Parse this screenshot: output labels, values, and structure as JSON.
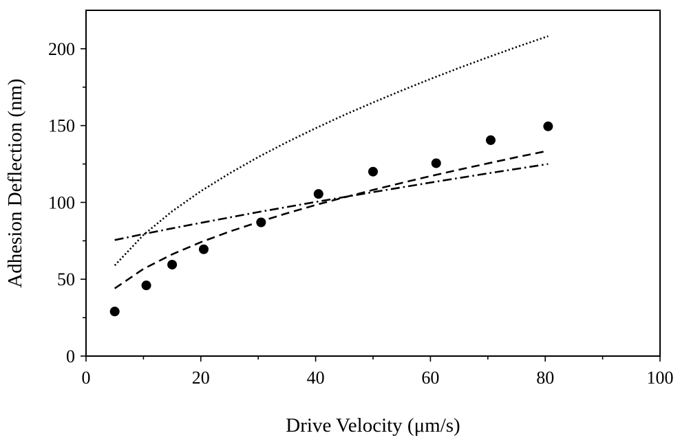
{
  "chart_data": {
    "type": "scatter",
    "title": "",
    "xlabel": "Drive Velocity (μm/s)",
    "ylabel": "Adhesion Deflection (nm)",
    "xlim": [
      0,
      100
    ],
    "ylim": [
      0,
      225
    ],
    "x_ticks": [
      0,
      20,
      40,
      60,
      80,
      100
    ],
    "x_minor_ticks": [
      10,
      30,
      50,
      70,
      90
    ],
    "y_ticks": [
      0,
      50,
      100,
      150,
      200
    ],
    "y_minor_ticks": [
      25,
      75,
      125,
      175
    ],
    "grid": false,
    "legend": "none",
    "series": [
      {
        "name": "measured",
        "style": "markers",
        "x": [
          5,
          10.5,
          15,
          20.5,
          30.5,
          40.5,
          50,
          61,
          70.5,
          80.5
        ],
        "y": [
          29,
          46,
          59.5,
          69.5,
          87,
          105.5,
          120,
          125.5,
          140.5,
          149.5
        ]
      },
      {
        "name": "dashed fit",
        "style": "dashed",
        "x": [
          5,
          10,
          15,
          20,
          25,
          30,
          35,
          40,
          45,
          50,
          55,
          60,
          65,
          70,
          75,
          80.5
        ],
        "y": [
          44,
          56.7,
          66.2,
          74.1,
          81.0,
          87.2,
          92.9,
          98.3,
          103.3,
          108.1,
          112.7,
          117.1,
          121.3,
          125.4,
          129.4,
          133.6
        ]
      },
      {
        "name": "dotted fit",
        "style": "dotted",
        "x": [
          5,
          10,
          15,
          20,
          25,
          30,
          35,
          40,
          45,
          50,
          55,
          60,
          65,
          70,
          75,
          80.5
        ],
        "y": [
          59,
          78.8,
          94.2,
          107.3,
          118.9,
          129.5,
          139.2,
          148.3,
          156.9,
          165.0,
          172.8,
          180.3,
          187.5,
          194.4,
          201.1,
          208.2
        ]
      },
      {
        "name": "dash-dot fit",
        "style": "dashdot",
        "x": [
          5,
          10,
          15,
          20,
          30,
          40,
          50,
          60,
          70,
          80.5
        ],
        "y": [
          75.5,
          79.4,
          83.1,
          86.7,
          93.7,
          100.3,
          106.7,
          112.9,
          118.9,
          125.0
        ]
      }
    ]
  }
}
